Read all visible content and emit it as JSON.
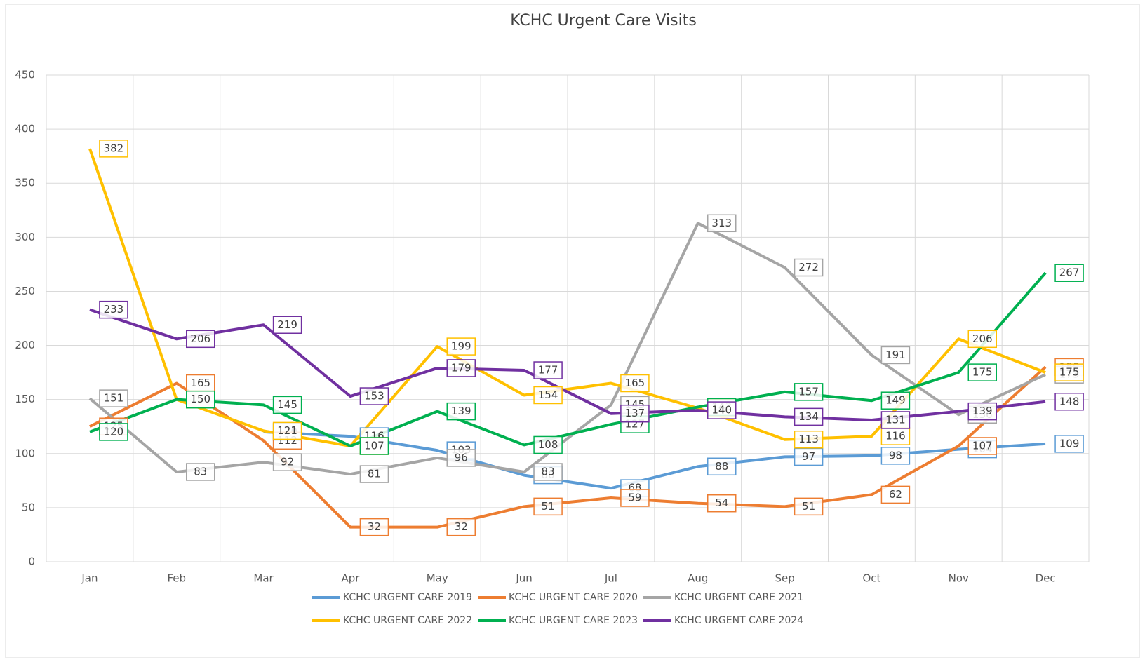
{
  "chart_data": {
    "type": "line",
    "title": "KCHC Urgent Care Visits",
    "categories": [
      "Jan",
      "Feb",
      "Mar",
      "Apr",
      "May",
      "Jun",
      "Jul",
      "Aug",
      "Sep",
      "Oct",
      "Nov",
      "Dec"
    ],
    "ylim": [
      0,
      450
    ],
    "yticks": [
      0,
      50,
      100,
      150,
      200,
      250,
      300,
      350,
      400,
      450
    ],
    "grid": true,
    "series": [
      {
        "name": "KCHC URGENT CARE 2019",
        "color": "#5b9bd5",
        "values": [
          null,
          null,
          120,
          116,
          103,
          80,
          68,
          88,
          97,
          98,
          104,
          109
        ]
      },
      {
        "name": "KCHC URGENT CARE 2020",
        "color": "#ed7d31",
        "values": [
          125,
          165,
          112,
          32,
          32,
          51,
          59,
          54,
          51,
          62,
          107,
          180
        ]
      },
      {
        "name": "KCHC URGENT CARE 2021",
        "color": "#a5a5a5",
        "values": [
          151,
          83,
          92,
          81,
          96,
          83,
          145,
          313,
          272,
          191,
          136,
          173
        ]
      },
      {
        "name": "KCHC URGENT CARE 2022",
        "color": "#ffc000",
        "values": [
          382,
          150,
          121,
          107,
          199,
          154,
          165,
          142,
          113,
          116,
          206,
          175
        ]
      },
      {
        "name": "KCHC URGENT CARE 2023",
        "color": "#00b050",
        "values": [
          120,
          150,
          145,
          107,
          139,
          108,
          127,
          143,
          157,
          149,
          175,
          267
        ]
      },
      {
        "name": "KCHC URGENT CARE 2024",
        "color": "#7030a0",
        "values": [
          233,
          206,
          219,
          153,
          179,
          177,
          137,
          140,
          134,
          131,
          139,
          148
        ]
      }
    ]
  }
}
